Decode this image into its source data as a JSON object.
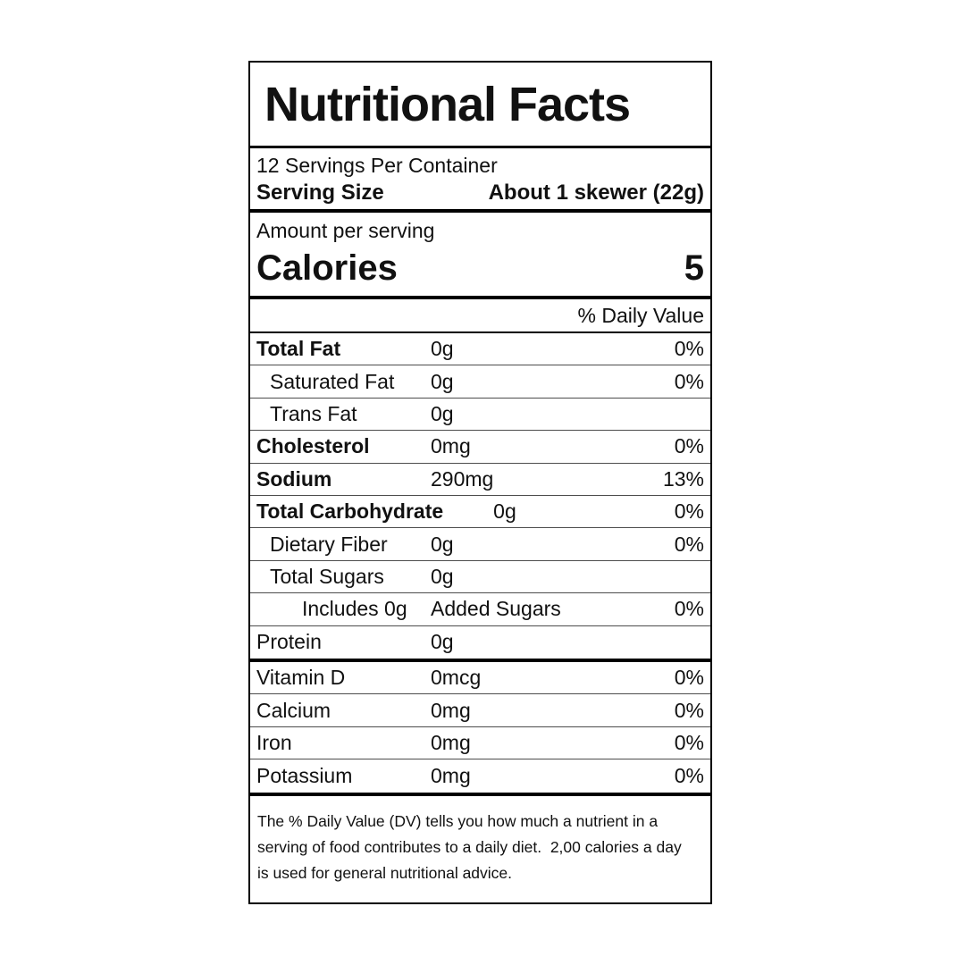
{
  "label": {
    "title": "Nutritional Facts",
    "servings_per_container": "12 Servings Per Container",
    "serving_size_label": "Serving Size",
    "serving_size_value": "About 1 skewer (22g)",
    "amount_per_serving": "Amount per serving",
    "calories_label": "Calories",
    "calories_value": "5",
    "daily_value_header": "% Daily Value",
    "rows": [
      {
        "name": "Total Fat",
        "amount": "0g",
        "dv": "0%"
      },
      {
        "name": "Saturated Fat",
        "amount": "0g",
        "dv": "0%"
      },
      {
        "name": "Trans Fat",
        "amount": "0g",
        "dv": ""
      },
      {
        "name": "Cholesterol",
        "amount": "0mg",
        "dv": "0%"
      },
      {
        "name": "Sodium",
        "amount": "290mg",
        "dv": "13%"
      },
      {
        "name": "Total Carbohydrate",
        "amount": "0g",
        "dv": "0%"
      },
      {
        "name": "Dietary Fiber",
        "amount": "0g",
        "dv": "0%"
      },
      {
        "name": "Total Sugars",
        "amount": "0g",
        "dv": ""
      },
      {
        "name": "Includes 0g",
        "amount": "Added Sugars",
        "dv": "0%"
      },
      {
        "name": "Protein",
        "amount": "0g",
        "dv": ""
      },
      {
        "name": "Vitamin D",
        "amount": "0mcg",
        "dv": "0%"
      },
      {
        "name": "Calcium",
        "amount": "0mg",
        "dv": "0%"
      },
      {
        "name": "Iron",
        "amount": "0mg",
        "dv": "0%"
      },
      {
        "name": "Potassium",
        "amount": "0mg",
        "dv": "0%"
      }
    ],
    "footnote_lines": [
      "The % Daily Value (DV) tells you how much a nutrient in a",
      "serving of food contributes to a daily diet.  2,00 calories a day",
      "is used for general nutritional advice."
    ]
  }
}
